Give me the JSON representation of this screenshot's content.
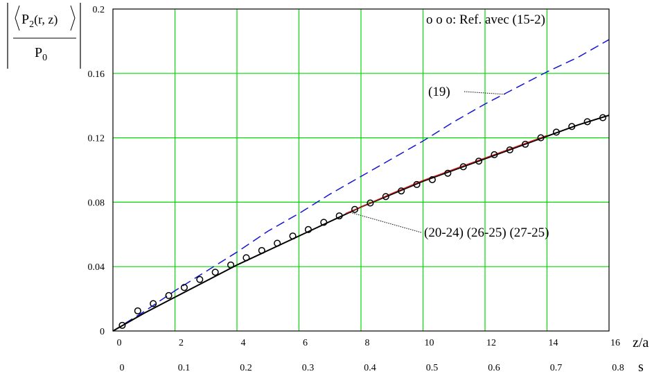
{
  "chart_data": {
    "type": "line",
    "ylabel": {
      "numerator_prefix": "P",
      "numerator_sub": "2",
      "numerator_args": "(r, z)",
      "denominator_prefix": "P",
      "denominator_sub": "0"
    },
    "xlabel": "z/a",
    "x2label": "s",
    "xlim": [
      0,
      16
    ],
    "ylim": [
      0,
      0.2
    ],
    "grid": true,
    "x_ticks": [
      "0",
      "2",
      "4",
      "6",
      "8",
      "10",
      "12",
      "14",
      "16"
    ],
    "x2_ticks": [
      "0",
      "0.1",
      "0.2",
      "0.3",
      "0.4",
      "0.5",
      "0.6",
      "0.7",
      "0.8"
    ],
    "y_ticks": [
      "0",
      "0.04",
      "0.08",
      "0.12",
      "0.16",
      "0.2"
    ],
    "colors": {
      "grid": "#00dd00",
      "dashed": "#1414d2",
      "solid_black": "#000000",
      "solid_red": "#c81e1e",
      "markers": "#000000"
    },
    "annotations": {
      "legend_text": "o o o: Ref. avec (15-2)",
      "label_19": "(19)",
      "label_20": "(20-24) (26-25) (27-25)"
    },
    "series": [
      {
        "name": "(19)",
        "style": "dashed",
        "x": [
          0,
          1,
          2,
          3,
          4,
          5,
          6,
          7,
          8,
          9,
          10,
          11,
          12,
          13,
          14,
          15,
          16
        ],
        "y": [
          0,
          0.012,
          0.025,
          0.037,
          0.049,
          0.062,
          0.073,
          0.085,
          0.096,
          0.107,
          0.118,
          0.13,
          0.141,
          0.151,
          0.161,
          0.17,
          0.181
        ]
      },
      {
        "name": "(20-24)",
        "style": "solid",
        "x": [
          0,
          1,
          2,
          3,
          4,
          5,
          6,
          7,
          8,
          9,
          10,
          11,
          12,
          13,
          14,
          15,
          16
        ],
        "y": [
          0,
          0.011,
          0.021,
          0.031,
          0.041,
          0.05,
          0.059,
          0.068,
          0.077,
          0.085,
          0.093,
          0.1,
          0.107,
          0.114,
          0.121,
          0.128,
          0.134
        ]
      },
      {
        "name": "(26-25)",
        "style": "solid",
        "x": [
          7.5,
          8,
          9,
          10,
          11,
          12,
          13,
          14
        ],
        "y": [
          0.073,
          0.077,
          0.0855,
          0.0935,
          0.1005,
          0.1075,
          0.1145,
          0.1215
        ]
      },
      {
        "name": "Ref. avec (15-2)",
        "style": "markers",
        "x": [
          0.3,
          0.8,
          1.3,
          1.8,
          2.3,
          2.8,
          3.3,
          3.8,
          4.3,
          4.8,
          5.3,
          5.8,
          6.3,
          6.8,
          7.3,
          7.8,
          8.3,
          8.8,
          9.3,
          9.8,
          10.3,
          10.8,
          11.3,
          11.8,
          12.3,
          12.8,
          13.3,
          13.8,
          14.3,
          14.8,
          15.3,
          15.8
        ],
        "y": [
          0.0035,
          0.0125,
          0.017,
          0.022,
          0.027,
          0.032,
          0.0365,
          0.041,
          0.0455,
          0.05,
          0.0545,
          0.059,
          0.063,
          0.0675,
          0.0715,
          0.0755,
          0.0795,
          0.0835,
          0.087,
          0.091,
          0.094,
          0.098,
          0.102,
          0.1055,
          0.1095,
          0.1125,
          0.116,
          0.12,
          0.1235,
          0.127,
          0.13,
          0.1325
        ]
      }
    ]
  }
}
